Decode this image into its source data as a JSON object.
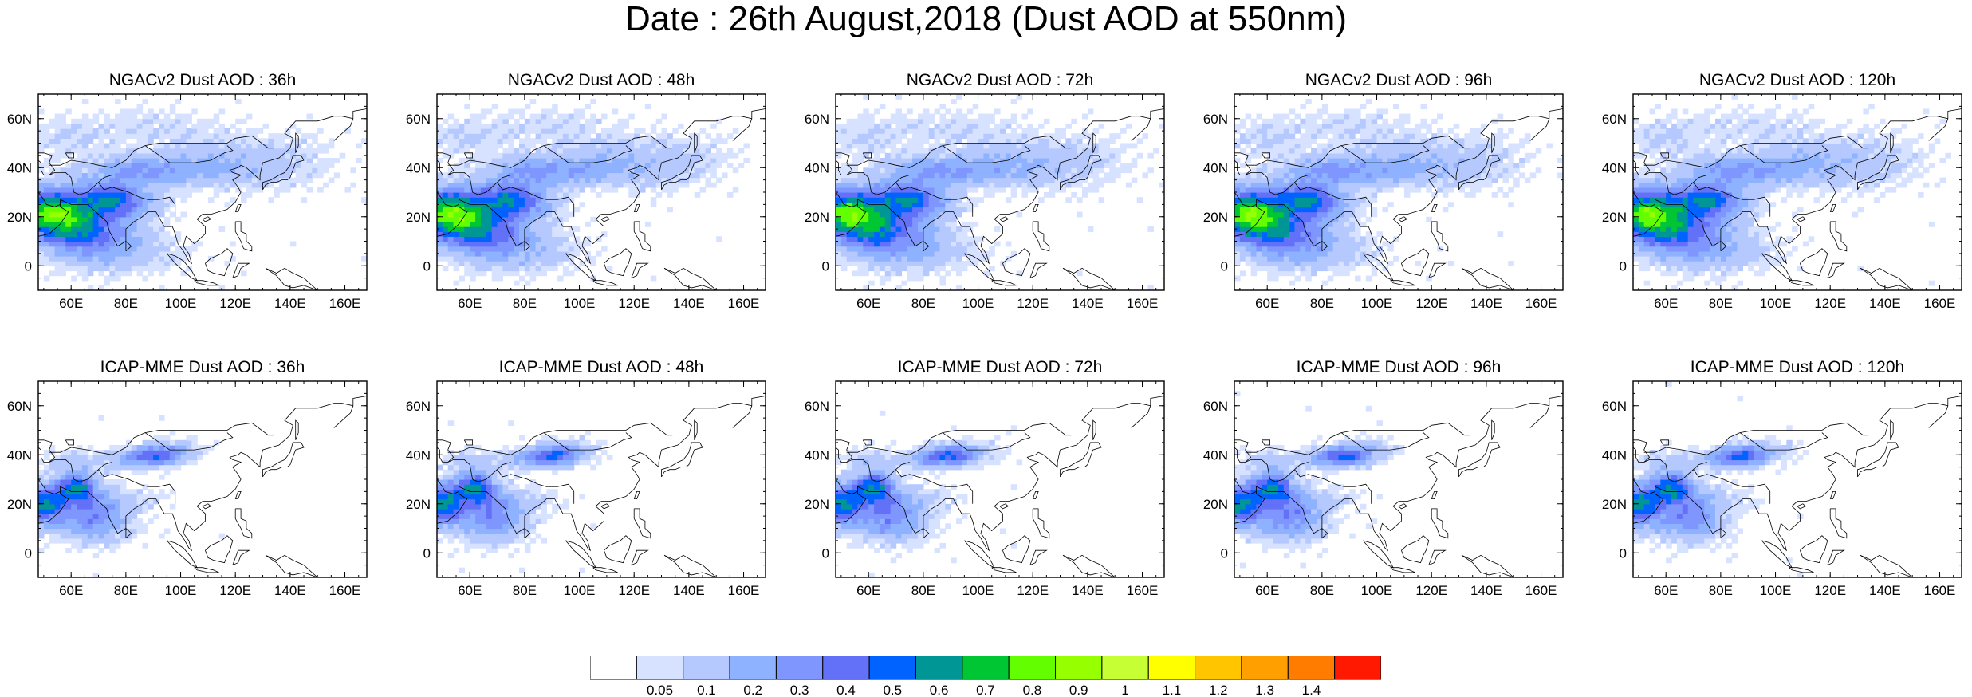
{
  "title": "Date : 26th August,2018 (Dust AOD at 550nm)",
  "lat_ticks": [
    "60N",
    "40N",
    "20N",
    "0"
  ],
  "lat_values": [
    60,
    40,
    20,
    0
  ],
  "lon_ticks": [
    "60E",
    "80E",
    "100E",
    "120E",
    "140E",
    "160E"
  ],
  "lon_values": [
    60,
    80,
    100,
    120,
    140,
    160
  ],
  "domain": {
    "lon": [
      48,
      168
    ],
    "lat": [
      -10,
      70
    ]
  },
  "panels": [
    {
      "title": "NGACv2 Dust AOD : 36h",
      "model": "ngac",
      "hour": 36
    },
    {
      "title": "NGACv2 Dust AOD : 48h",
      "model": "ngac",
      "hour": 48
    },
    {
      "title": "NGACv2 Dust AOD : 72h",
      "model": "ngac",
      "hour": 72
    },
    {
      "title": "NGACv2 Dust AOD : 96h",
      "model": "ngac",
      "hour": 96
    },
    {
      "title": "NGACv2 Dust AOD : 120h",
      "model": "ngac",
      "hour": 120
    },
    {
      "title": "ICAP-MME Dust AOD : 36h",
      "model": "icap",
      "hour": 36
    },
    {
      "title": "ICAP-MME Dust AOD : 48h",
      "model": "icap",
      "hour": 48
    },
    {
      "title": "ICAP-MME Dust AOD : 72h",
      "model": "icap",
      "hour": 72
    },
    {
      "title": "ICAP-MME Dust AOD : 96h",
      "model": "icap",
      "hour": 96
    },
    {
      "title": "ICAP-MME Dust AOD : 120h",
      "model": "icap",
      "hour": 120
    }
  ],
  "colorbar": {
    "labels": [
      "0.05",
      "0.1",
      "0.2",
      "0.3",
      "0.4",
      "0.5",
      "0.6",
      "0.7",
      "0.8",
      "0.9",
      "1",
      "1.1",
      "1.2",
      "1.3",
      "1.4"
    ],
    "colors": [
      "#ffffff",
      "#d6e2ff",
      "#b5c9ff",
      "#8eb2ff",
      "#7f96ff",
      "#6370f8",
      "#0063ff",
      "#009696",
      "#00c633",
      "#63ff00",
      "#96ff00",
      "#c6ff33",
      "#ffff00",
      "#ffc600",
      "#ffa000",
      "#ff7c00",
      "#ff1900"
    ]
  }
}
